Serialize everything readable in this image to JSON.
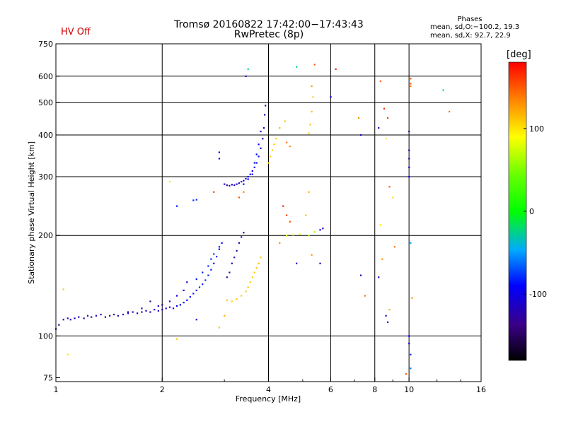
{
  "chart_data": {
    "type": "scatter",
    "title": "Tromsø 20160822 17:42:00−17:43:43",
    "subtitle": "RwPretec (8p)",
    "status": "HV Off",
    "xlabel": "Frequency [MHz]",
    "ylabel": "Stationary phase Virtual Height [km]",
    "x_scale": "log",
    "y_scale": "log",
    "xlim": [
      1,
      16
    ],
    "ylim": [
      73,
      750
    ],
    "x_ticks": [
      1,
      2,
      4,
      6,
      8,
      10,
      16
    ],
    "y_ticks": [
      75,
      100,
      200,
      300,
      400,
      500,
      600,
      750
    ],
    "x_gridlines": [
      2,
      4,
      6,
      8,
      10
    ],
    "y_gridlines": [
      100,
      200,
      300,
      400,
      500,
      600
    ],
    "grid": true,
    "phases_box": {
      "title": "Phases",
      "o_line": "mean, sd,O:−100.2, 19.3",
      "x_line": "mean, sd,X:  92.7, 22.9"
    },
    "colorbar": {
      "label": "[deg]",
      "range": [
        -180,
        180
      ],
      "ticks": [
        100,
        0,
        -100
      ],
      "colormap": "rainbow"
    },
    "series": [
      {
        "points": [
          [
            1.0,
            105,
            -140
          ],
          [
            1.02,
            108,
            -130
          ],
          [
            1.05,
            112,
            -120
          ],
          [
            1.08,
            113,
            -125
          ],
          [
            1.1,
            112,
            -120
          ],
          [
            1.13,
            113,
            -118
          ],
          [
            1.16,
            114,
            -122
          ],
          [
            1.2,
            113,
            -120
          ],
          [
            1.23,
            115,
            -125
          ],
          [
            1.26,
            114,
            -118
          ],
          [
            1.3,
            115,
            -120
          ],
          [
            1.34,
            116,
            -122
          ],
          [
            1.38,
            114,
            -125
          ],
          [
            1.42,
            115,
            -120
          ],
          [
            1.46,
            116,
            -118
          ],
          [
            1.5,
            115,
            -122
          ],
          [
            1.55,
            116,
            -120
          ],
          [
            1.6,
            117,
            -115
          ],
          [
            1.65,
            118,
            -118
          ],
          [
            1.7,
            117,
            -120
          ],
          [
            1.75,
            118,
            -115
          ],
          [
            1.8,
            119,
            -118
          ],
          [
            1.85,
            118,
            -110
          ],
          [
            1.9,
            120,
            -112
          ],
          [
            1.95,
            119,
            -115
          ],
          [
            2.0,
            120,
            -110
          ],
          [
            2.05,
            121,
            -108
          ],
          [
            2.1,
            122,
            -112
          ],
          [
            2.15,
            121,
            -110
          ],
          [
            2.2,
            123,
            -100
          ],
          [
            2.25,
            124,
            -100
          ],
          [
            2.3,
            126,
            -95
          ],
          [
            2.35,
            128,
            -90
          ],
          [
            2.4,
            131,
            -88
          ],
          [
            2.45,
            134,
            -85
          ],
          [
            2.5,
            137,
            -82
          ],
          [
            2.55,
            140,
            -80
          ],
          [
            2.6,
            143,
            -82
          ],
          [
            2.65,
            147,
            -80
          ],
          [
            2.7,
            152,
            -82
          ],
          [
            2.75,
            158,
            -85
          ],
          [
            2.8,
            165,
            -88
          ],
          [
            2.85,
            173,
            -90
          ],
          [
            2.9,
            182,
            -92
          ],
          [
            2.95,
            190,
            -95
          ],
          [
            3.0,
            285,
            -120
          ],
          [
            3.05,
            283,
            -118
          ],
          [
            3.1,
            282,
            -115
          ],
          [
            3.15,
            284,
            -118
          ],
          [
            3.2,
            283,
            -120
          ],
          [
            3.25,
            285,
            -112
          ],
          [
            3.3,
            287,
            -110
          ],
          [
            3.35,
            290,
            -108
          ],
          [
            3.4,
            292,
            -110
          ],
          [
            3.45,
            296,
            -105
          ],
          [
            3.5,
            300,
            -100
          ],
          [
            3.55,
            305,
            -100
          ],
          [
            3.6,
            312,
            -95
          ],
          [
            3.65,
            320,
            -95
          ],
          [
            3.7,
            330,
            -100
          ],
          [
            3.75,
            345,
            -105
          ],
          [
            3.8,
            365,
            -110
          ],
          [
            3.85,
            390,
            -112
          ],
          [
            3.88,
            420,
            -115
          ],
          [
            3.9,
            460,
            -118
          ],
          [
            3.92,
            490,
            -120
          ],
          [
            1.6,
            118,
            -125
          ],
          [
            1.75,
            121,
            -122
          ],
          [
            1.85,
            127,
            -128
          ],
          [
            1.95,
            123,
            -120
          ],
          [
            2.0,
            124,
            -122
          ],
          [
            2.1,
            127,
            -115
          ],
          [
            2.2,
            132,
            -110
          ],
          [
            2.3,
            137,
            -108
          ],
          [
            2.35,
            145,
            -105
          ],
          [
            2.5,
            148,
            -85
          ],
          [
            2.6,
            155,
            -82
          ],
          [
            2.7,
            162,
            -80
          ],
          [
            2.75,
            170,
            -78
          ],
          [
            2.8,
            176,
            -80
          ],
          [
            2.9,
            185,
            -82
          ],
          [
            3.05,
            150,
            -125
          ],
          [
            3.1,
            155,
            -130
          ],
          [
            3.15,
            165,
            -128
          ],
          [
            3.2,
            172,
            -125
          ],
          [
            3.25,
            180,
            -120
          ],
          [
            3.3,
            190,
            -122
          ],
          [
            3.35,
            198,
            -125
          ],
          [
            3.4,
            204,
            -128
          ],
          [
            3.4,
            285,
            -90
          ],
          [
            3.5,
            295,
            -92
          ],
          [
            3.6,
            305,
            -88
          ],
          [
            3.65,
            330,
            -85
          ],
          [
            3.7,
            350,
            -90
          ],
          [
            3.75,
            375,
            -95
          ],
          [
            3.8,
            410,
            -98
          ],
          [
            3.05,
            128,
            110
          ],
          [
            3.15,
            127,
            105
          ],
          [
            3.25,
            129,
            112
          ],
          [
            3.35,
            132,
            108
          ],
          [
            3.45,
            136,
            110
          ],
          [
            3.5,
            140,
            112
          ],
          [
            3.55,
            145,
            108
          ],
          [
            3.6,
            150,
            105
          ],
          [
            3.65,
            155,
            110
          ],
          [
            3.7,
            160,
            112
          ],
          [
            3.75,
            165,
            115
          ],
          [
            3.8,
            172,
            110
          ],
          [
            4.0,
            330,
            105
          ],
          [
            4.05,
            345,
            110
          ],
          [
            4.1,
            360,
            108
          ],
          [
            4.15,
            375,
            112
          ],
          [
            4.2,
            390,
            110
          ],
          [
            4.3,
            420,
            115
          ],
          [
            4.45,
            440,
            112
          ],
          [
            4.5,
            380,
            140
          ],
          [
            4.6,
            370,
            130
          ],
          [
            4.5,
            200,
            80
          ],
          [
            4.7,
            201,
            85
          ],
          [
            4.9,
            202,
            90
          ],
          [
            5.2,
            200,
            70
          ],
          [
            5.4,
            205,
            60
          ],
          [
            5.6,
            208,
            -110
          ],
          [
            5.7,
            210,
            -115
          ],
          [
            5.2,
            405,
            110
          ],
          [
            5.25,
            430,
            112
          ],
          [
            5.3,
            470,
            115
          ],
          [
            5.35,
            520,
            105
          ],
          [
            5.3,
            560,
            130
          ],
          [
            5.4,
            650,
            150
          ],
          [
            6.2,
            630,
            170
          ],
          [
            6.0,
            520,
            -100
          ],
          [
            7.2,
            450,
            130
          ],
          [
            7.3,
            400,
            -120
          ],
          [
            8.2,
            420,
            -110
          ],
          [
            8.3,
            580,
            150
          ],
          [
            8.5,
            480,
            170
          ],
          [
            8.6,
            390,
            95
          ],
          [
            8.7,
            450,
            160
          ],
          [
            10.0,
            410,
            -120
          ],
          [
            10.0,
            360,
            -110
          ],
          [
            10.0,
            340,
            -120
          ],
          [
            10.0,
            320,
            -110
          ],
          [
            10.0,
            300,
            -100
          ],
          [
            10.1,
            590,
            150
          ],
          [
            10.1,
            570,
            150
          ],
          [
            10.1,
            560,
            140
          ],
          [
            12.5,
            545,
            -30
          ],
          [
            13.0,
            470,
            140
          ],
          [
            4.8,
            640,
            -30
          ],
          [
            3.5,
            630,
            -20
          ],
          [
            3.45,
            600,
            -110
          ],
          [
            2.45,
            255,
            -80
          ],
          [
            2.5,
            256,
            -80
          ],
          [
            2.2,
            245,
            -85
          ],
          [
            2.9,
            355,
            -90
          ],
          [
            2.9,
            340,
            -95
          ],
          [
            3.4,
            270,
            140
          ],
          [
            3.3,
            260,
            150
          ],
          [
            2.8,
            270,
            160
          ],
          [
            2.1,
            290,
            100
          ],
          [
            4.4,
            245,
            170
          ],
          [
            4.5,
            230,
            160
          ],
          [
            4.6,
            220,
            150
          ],
          [
            4.3,
            190,
            130
          ],
          [
            4.8,
            165,
            -110
          ],
          [
            5.3,
            175,
            130
          ],
          [
            5.6,
            165,
            -110
          ],
          [
            5.2,
            270,
            120
          ],
          [
            5.1,
            230,
            110
          ],
          [
            7.3,
            152,
            -120
          ],
          [
            7.5,
            132,
            140
          ],
          [
            8.2,
            150,
            -110
          ],
          [
            8.3,
            215,
            100
          ],
          [
            8.4,
            170,
            130
          ],
          [
            8.6,
            115,
            -110
          ],
          [
            8.7,
            110,
            -100
          ],
          [
            8.8,
            120,
            120
          ],
          [
            8.8,
            280,
            150
          ],
          [
            9.0,
            260,
            100
          ],
          [
            9.1,
            185,
            140
          ],
          [
            10.0,
            100,
            -90
          ],
          [
            10.0,
            95,
            -100
          ],
          [
            10.1,
            88,
            -80
          ],
          [
            10.1,
            80,
            -60
          ],
          [
            10.1,
            190,
            -50
          ],
          [
            10.2,
            130,
            130
          ],
          [
            9.8,
            77,
            150
          ],
          [
            1.05,
            138,
            110
          ],
          [
            1.08,
            88,
            100
          ],
          [
            2.2,
            98,
            110
          ],
          [
            2.9,
            106,
            110
          ],
          [
            3.0,
            115,
            120
          ],
          [
            2.5,
            112,
            -110
          ]
        ]
      }
    ]
  }
}
